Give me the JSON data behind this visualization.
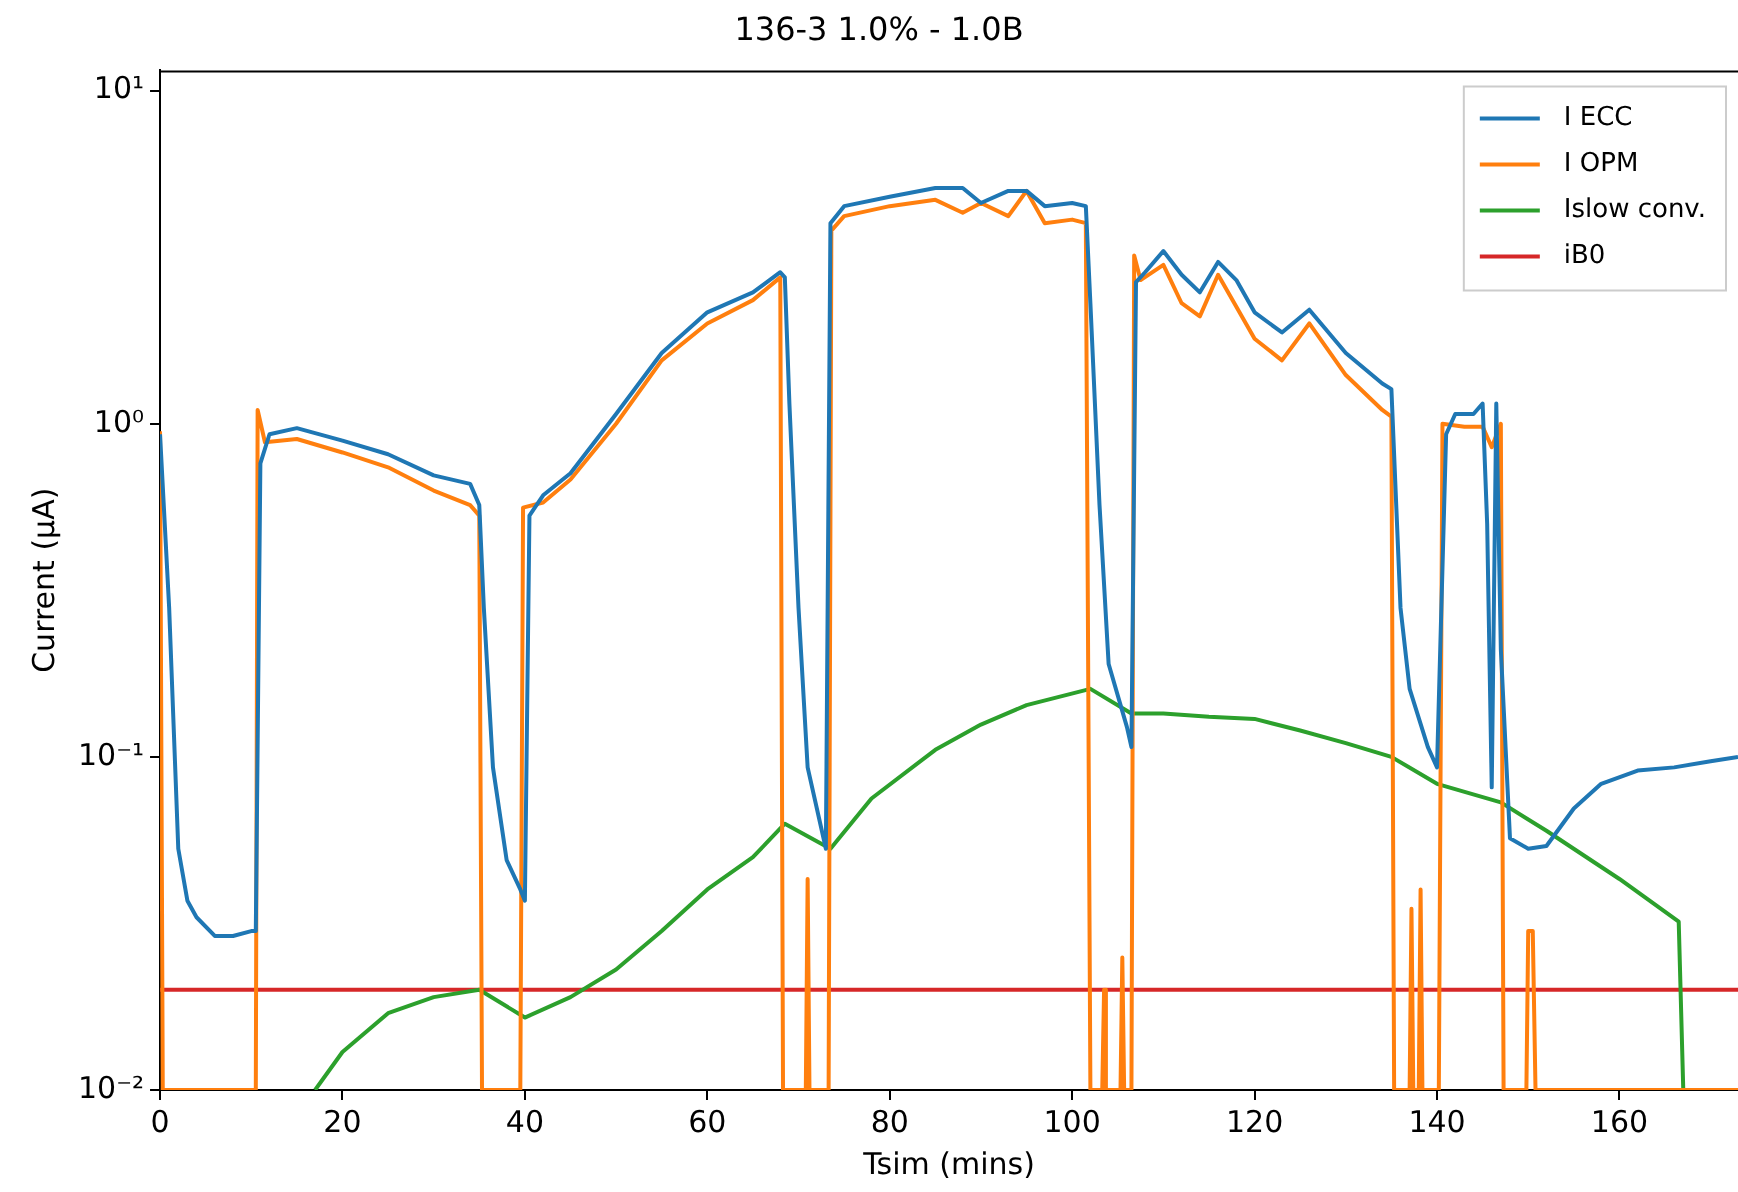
{
  "chart_data": {
    "type": "line",
    "title": "136-3 1.0% - 1.0B",
    "xlabel": "Tsim (mins)",
    "ylabel": "Current (μA)",
    "log": "y",
    "grid": false,
    "legend": "top right",
    "xlim": [
      0,
      173
    ],
    "xticks": [
      0,
      20,
      40,
      60,
      80,
      100,
      120,
      140,
      160
    ],
    "ylim": [
      0.01,
      11.5
    ],
    "yticks": [
      {
        "value": 0.01,
        "label": "10⁻²"
      },
      {
        "value": 0.1,
        "label": "10⁻¹"
      },
      {
        "value": 1,
        "label": "10⁰"
      },
      {
        "value": 10,
        "label": "10¹"
      }
    ],
    "series": [
      {
        "name": "I ECC",
        "color": "#1f77b4",
        "x": [
          0,
          1,
          2,
          3,
          4,
          6,
          8,
          10,
          10.5,
          11,
          12,
          15,
          20,
          25,
          30,
          34,
          35,
          35.5,
          36.5,
          38,
          39.5,
          40,
          40.5,
          42,
          45,
          50,
          55,
          60,
          65,
          68,
          68.5,
          69,
          70,
          71,
          73,
          73.5,
          75,
          80,
          85,
          88,
          90,
          93,
          95,
          97,
          100,
          101.5,
          102,
          103,
          104,
          106,
          106.5,
          107,
          108,
          110,
          112,
          114,
          116,
          118,
          120,
          123,
          126,
          130,
          134,
          135,
          136,
          137,
          139,
          140,
          141,
          142,
          144,
          145,
          145.5,
          146,
          146.5,
          147,
          148,
          150,
          152,
          155,
          158,
          162,
          166,
          170,
          173
        ],
        "values": [
          0.93,
          0.28,
          0.053,
          0.037,
          0.033,
          0.029,
          0.029,
          0.03,
          0.03,
          0.76,
          0.93,
          0.97,
          0.89,
          0.81,
          0.7,
          0.66,
          0.57,
          0.28,
          0.093,
          0.049,
          0.04,
          0.037,
          0.53,
          0.61,
          0.71,
          1.07,
          1.63,
          2.16,
          2.48,
          2.85,
          2.75,
          1.15,
          0.28,
          0.093,
          0.053,
          4.0,
          4.5,
          4.8,
          5.1,
          5.1,
          4.6,
          5.0,
          5.0,
          4.5,
          4.6,
          4.5,
          2.3,
          0.57,
          0.19,
          0.123,
          0.107,
          2.66,
          2.85,
          3.3,
          2.8,
          2.48,
          3.06,
          2.7,
          2.16,
          1.88,
          2.2,
          1.63,
          1.32,
          1.27,
          0.28,
          0.16,
          0.107,
          0.093,
          0.93,
          1.07,
          1.07,
          1.15,
          0.5,
          0.081,
          1.15,
          0.21,
          0.057,
          0.053,
          0.054,
          0.07,
          0.083,
          0.091,
          0.093,
          0.097,
          0.1
        ]
      },
      {
        "name": "I OPM",
        "color": "#ff7f0e",
        "x": [
          0,
          0.3,
          10.5,
          10.7,
          11.5,
          15,
          20,
          25,
          30,
          34,
          35,
          35.3,
          39.5,
          39.8,
          42,
          45,
          50,
          55,
          60,
          65,
          68,
          68.3,
          70.8,
          71,
          71.2,
          73.3,
          73.6,
          75,
          80,
          85,
          88,
          90,
          93,
          95,
          97,
          100,
          101.5,
          102,
          103.3,
          103.5,
          103.7,
          105.3,
          105.5,
          105.7,
          106.5,
          106.8,
          107.5,
          110,
          112,
          114,
          116,
          120,
          123,
          126,
          130,
          134,
          135,
          135.3,
          137,
          137.2,
          137.4,
          138,
          138.2,
          138.4,
          140.2,
          140.6,
          143,
          145,
          146,
          147,
          147.3,
          149.8,
          150,
          150.5,
          150.8,
          173
        ],
        "values": [
          0.95,
          0.01,
          0.01,
          1.1,
          0.88,
          0.9,
          0.82,
          0.74,
          0.63,
          0.57,
          0.53,
          0.01,
          0.01,
          0.56,
          0.58,
          0.68,
          1.0,
          1.55,
          2.0,
          2.35,
          2.75,
          0.01,
          0.01,
          0.043,
          0.01,
          0.01,
          3.8,
          4.2,
          4.5,
          4.7,
          4.3,
          4.6,
          4.2,
          5.0,
          4.0,
          4.1,
          4.0,
          0.01,
          0.01,
          0.02,
          0.01,
          0.01,
          0.025,
          0.01,
          0.01,
          3.2,
          2.7,
          3.0,
          2.3,
          2.1,
          2.8,
          1.8,
          1.55,
          2.0,
          1.4,
          1.1,
          1.05,
          0.01,
          0.01,
          0.035,
          0.01,
          0.01,
          0.04,
          0.01,
          0.01,
          1.0,
          0.98,
          0.98,
          0.85,
          1.0,
          0.01,
          0.01,
          0.03,
          0.03,
          0.01,
          0.01
        ]
      },
      {
        "name": "Islow conv.",
        "color": "#2ca02c",
        "x": [
          17,
          20,
          25,
          30,
          35,
          40,
          45,
          50,
          55,
          60,
          65,
          68.5,
          73.5,
          78,
          85,
          90,
          95,
          102,
          106.5,
          110,
          115,
          120,
          125,
          130,
          135,
          140,
          147,
          152,
          160,
          166.5,
          167
        ],
        "values": [
          0.01,
          0.013,
          0.017,
          0.019,
          0.02,
          0.0165,
          0.019,
          0.023,
          0.03,
          0.04,
          0.05,
          0.063,
          0.053,
          0.075,
          0.105,
          0.125,
          0.143,
          0.16,
          0.135,
          0.135,
          0.132,
          0.13,
          0.12,
          0.11,
          0.1,
          0.083,
          0.073,
          0.06,
          0.043,
          0.032,
          0.01
        ]
      },
      {
        "name": "iB0",
        "color": "#d62728",
        "x": [
          0,
          173
        ],
        "values": [
          0.02,
          0.02
        ]
      }
    ]
  }
}
